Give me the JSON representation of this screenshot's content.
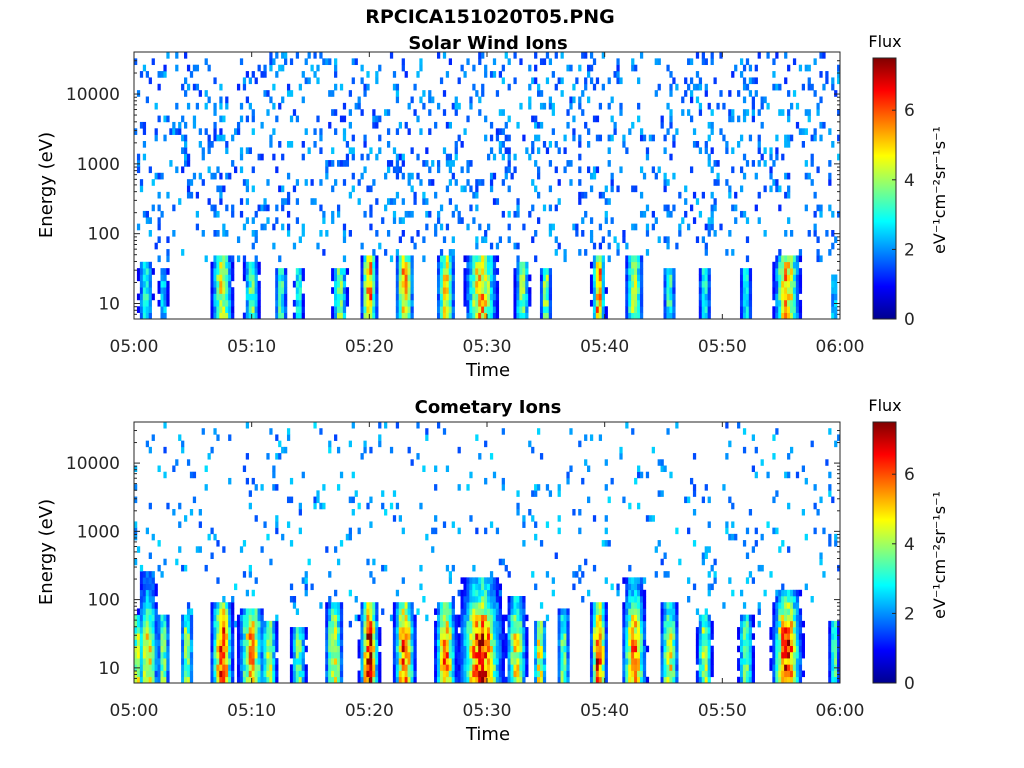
{
  "figure": {
    "title": "RPCICA151020T05.PNG"
  },
  "colormap": {
    "name": "jet",
    "stops": [
      "#00008f",
      "#0000ff",
      "#0080ff",
      "#00ffff",
      "#80ff80",
      "#ffff00",
      "#ff8000",
      "#ff0000",
      "#800000"
    ]
  },
  "chart_data": [
    {
      "type": "heatmap",
      "title": "Solar Wind Ions",
      "xlabel": "Time",
      "ylabel": "Energy (eV)",
      "x_tick_labels": [
        "05:00",
        "05:10",
        "05:20",
        "05:30",
        "05:40",
        "05:50",
        "06:00"
      ],
      "x_range_minutes": [
        0,
        60
      ],
      "y_scale": "log",
      "y_range": [
        6,
        40000
      ],
      "y_tick_values": [
        10,
        100,
        1000,
        10000
      ],
      "y_tick_labels": [
        "10",
        "100",
        "1000",
        "10000"
      ],
      "colorbar": {
        "label": "Flux",
        "unit_label": "eV⁻¹cm⁻²sr⁻¹s⁻¹",
        "range": [
          0,
          7.5
        ],
        "tick_values": [
          0,
          2,
          4,
          6
        ],
        "tick_labels": [
          "0",
          "2",
          "4",
          "6"
        ]
      },
      "low_energy_bursts": [
        {
          "t": 1.0,
          "w": 0.6,
          "peak": 3.2,
          "top": 40
        },
        {
          "t": 2.5,
          "w": 0.4,
          "peak": 2.8,
          "top": 35
        },
        {
          "t": 7.5,
          "w": 0.8,
          "peak": 5.0,
          "top": 45
        },
        {
          "t": 10.0,
          "w": 0.6,
          "peak": 4.0,
          "top": 40
        },
        {
          "t": 12.5,
          "w": 0.5,
          "peak": 3.5,
          "top": 35
        },
        {
          "t": 14.0,
          "w": 0.4,
          "peak": 3.2,
          "top": 30
        },
        {
          "t": 17.5,
          "w": 0.6,
          "peak": 4.0,
          "top": 35
        },
        {
          "t": 20.0,
          "w": 0.6,
          "peak": 6.0,
          "top": 45
        },
        {
          "t": 23.0,
          "w": 0.7,
          "peak": 5.5,
          "top": 45
        },
        {
          "t": 26.5,
          "w": 0.7,
          "peak": 5.0,
          "top": 45
        },
        {
          "t": 29.5,
          "w": 1.2,
          "peak": 5.5,
          "top": 50
        },
        {
          "t": 33.0,
          "w": 0.6,
          "peak": 4.0,
          "top": 40
        },
        {
          "t": 35.0,
          "w": 0.4,
          "peak": 4.5,
          "top": 30
        },
        {
          "t": 39.5,
          "w": 0.5,
          "peak": 6.0,
          "top": 45
        },
        {
          "t": 42.5,
          "w": 0.7,
          "peak": 4.5,
          "top": 45
        },
        {
          "t": 45.5,
          "w": 0.5,
          "peak": 3.5,
          "top": 35
        },
        {
          "t": 48.5,
          "w": 0.5,
          "peak": 3.2,
          "top": 30
        },
        {
          "t": 52.0,
          "w": 0.5,
          "peak": 3.0,
          "top": 30
        },
        {
          "t": 55.5,
          "w": 1.0,
          "peak": 5.5,
          "top": 50
        },
        {
          "t": 59.5,
          "w": 0.3,
          "peak": 3.0,
          "top": 25
        }
      ],
      "background_density": 0.16,
      "background_level": 1.2
    },
    {
      "type": "heatmap",
      "title": "Cometary Ions",
      "xlabel": "Time",
      "ylabel": "Energy (eV)",
      "x_tick_labels": [
        "05:00",
        "05:10",
        "05:20",
        "05:30",
        "05:40",
        "05:50",
        "06:00"
      ],
      "x_range_minutes": [
        0,
        60
      ],
      "y_scale": "log",
      "y_range": [
        6,
        40000
      ],
      "y_tick_values": [
        10,
        100,
        1000,
        10000
      ],
      "y_tick_labels": [
        "10",
        "100",
        "1000",
        "10000"
      ],
      "colorbar": {
        "label": "Flux",
        "unit_label": "eV⁻¹cm⁻²sr⁻¹s⁻¹",
        "range": [
          0,
          7.5
        ],
        "tick_values": [
          0,
          2,
          4,
          6
        ],
        "tick_labels": [
          "0",
          "2",
          "4",
          "6"
        ]
      },
      "low_energy_bursts": [
        {
          "t": 0.3,
          "w": 0.5,
          "peak": 4.5,
          "top": 60
        },
        {
          "t": 1.2,
          "w": 0.8,
          "peak": 5.0,
          "top": 250
        },
        {
          "t": 2.5,
          "w": 0.5,
          "peak": 4.0,
          "top": 60
        },
        {
          "t": 4.5,
          "w": 0.5,
          "peak": 4.5,
          "top": 60
        },
        {
          "t": 7.5,
          "w": 0.8,
          "peak": 6.8,
          "top": 90
        },
        {
          "t": 10.0,
          "w": 1.0,
          "peak": 5.5,
          "top": 80
        },
        {
          "t": 11.5,
          "w": 0.6,
          "peak": 4.5,
          "top": 45
        },
        {
          "t": 14.0,
          "w": 0.6,
          "peak": 4.0,
          "top": 40
        },
        {
          "t": 17.0,
          "w": 0.7,
          "peak": 5.0,
          "top": 100
        },
        {
          "t": 20.0,
          "w": 0.7,
          "peak": 7.0,
          "top": 90
        },
        {
          "t": 23.0,
          "w": 0.8,
          "peak": 6.5,
          "top": 90
        },
        {
          "t": 26.5,
          "w": 0.8,
          "peak": 6.0,
          "top": 100
        },
        {
          "t": 29.5,
          "w": 1.6,
          "peak": 6.8,
          "top": 200
        },
        {
          "t": 32.5,
          "w": 0.8,
          "peak": 5.0,
          "top": 120
        },
        {
          "t": 34.5,
          "w": 0.5,
          "peak": 5.0,
          "top": 45
        },
        {
          "t": 36.5,
          "w": 0.5,
          "peak": 4.0,
          "top": 80
        },
        {
          "t": 39.5,
          "w": 0.6,
          "peak": 7.0,
          "top": 90
        },
        {
          "t": 42.5,
          "w": 0.9,
          "peak": 6.0,
          "top": 200
        },
        {
          "t": 45.5,
          "w": 0.7,
          "peak": 5.0,
          "top": 100
        },
        {
          "t": 48.5,
          "w": 0.6,
          "peak": 4.5,
          "top": 60
        },
        {
          "t": 52.0,
          "w": 0.6,
          "peak": 4.0,
          "top": 60
        },
        {
          "t": 55.5,
          "w": 1.1,
          "peak": 6.8,
          "top": 150
        },
        {
          "t": 59.5,
          "w": 0.4,
          "peak": 4.0,
          "top": 45
        }
      ],
      "background_density": 0.06,
      "background_level": 1.4
    }
  ]
}
